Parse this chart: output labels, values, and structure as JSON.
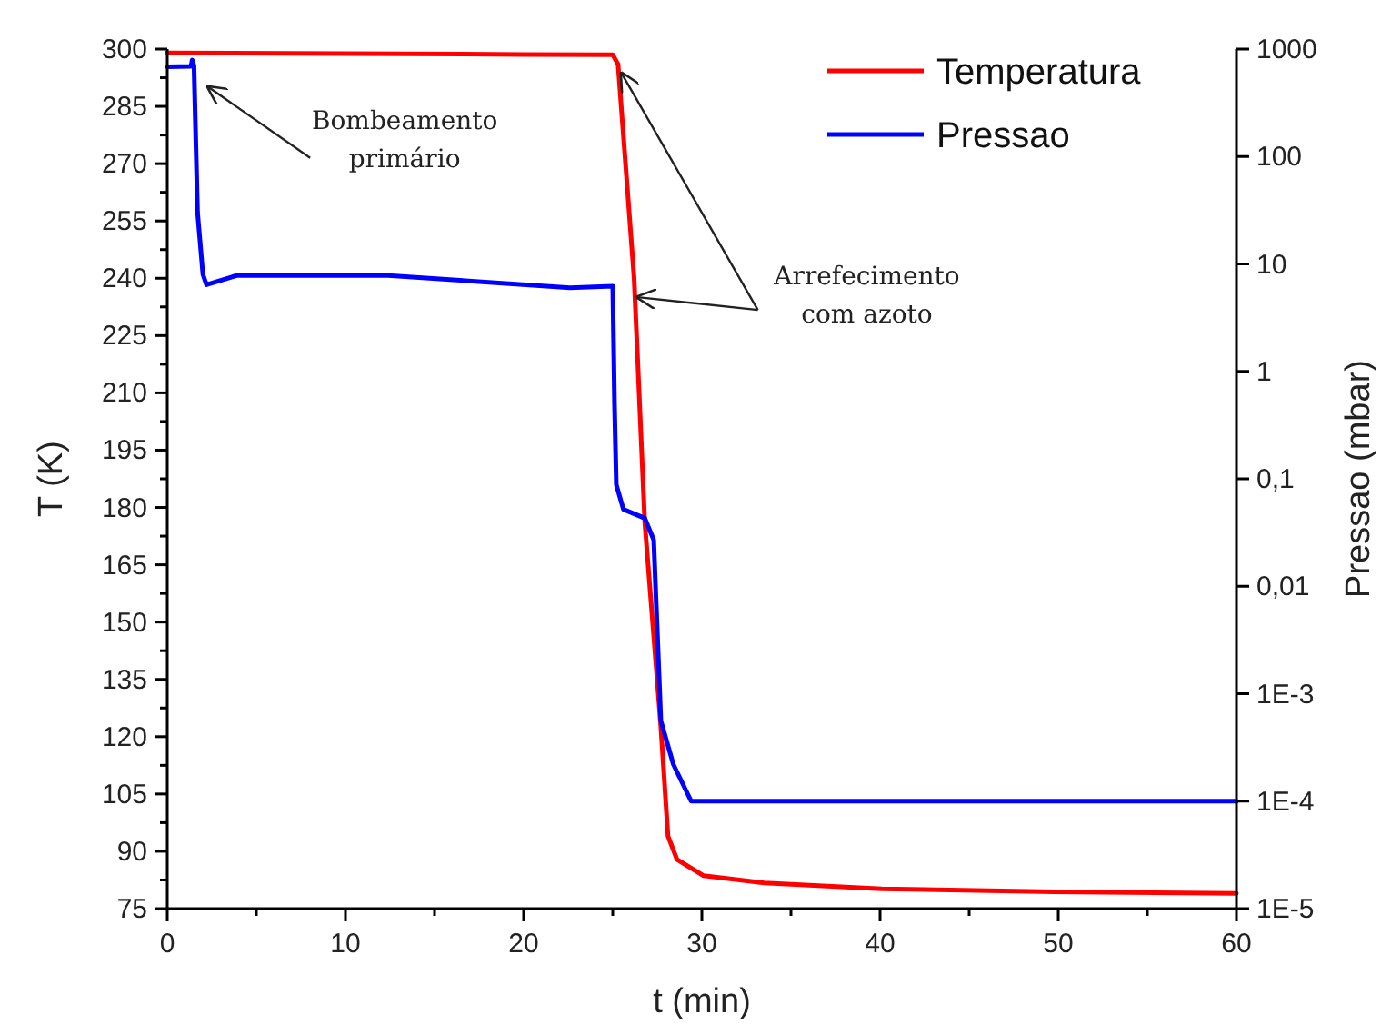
{
  "chart_data": {
    "type": "line",
    "xlabel": "t (min)",
    "ylabel": "T (K)",
    "y2label": "Pressao (mbar)",
    "xlim": [
      0,
      60
    ],
    "xticks": [
      0,
      {
        "value": 5,
        "label": null
      },
      10,
      {
        "value": 15,
        "label": null
      },
      20,
      {
        "value": 25,
        "label": null
      },
      30,
      {
        "value": 35,
        "label": null
      },
      40,
      {
        "value": 45,
        "label": null
      },
      50,
      {
        "value": 55,
        "label": null
      },
      60
    ],
    "ylim": [
      75,
      300
    ],
    "yticks": [
      75,
      {
        "value": 82.5,
        "label": null
      },
      90,
      {
        "value": 97.5,
        "label": null
      },
      105,
      {
        "value": 112.5,
        "label": null
      },
      120,
      {
        "value": 127.5,
        "label": null
      },
      135,
      {
        "value": 142.5,
        "label": null
      },
      150,
      {
        "value": 157.5,
        "label": null
      },
      165,
      {
        "value": 172.5,
        "label": null
      },
      180,
      {
        "value": 187.5,
        "label": null
      },
      195,
      {
        "value": 202.5,
        "label": null
      },
      210,
      {
        "value": 217.5,
        "label": null
      },
      225,
      {
        "value": 232.5,
        "label": null
      },
      240,
      {
        "value": 247.5,
        "label": null
      },
      255,
      {
        "value": 262.5,
        "label": null
      },
      270,
      {
        "value": 277.5,
        "label": null
      },
      285,
      {
        "value": 292.5,
        "label": null
      },
      300
    ],
    "y2lim": [
      1e-05,
      1000
    ],
    "y2ticks": [
      {
        "value": 1e-05,
        "label": "1E-5"
      },
      {
        "value": 0.0001,
        "label": "1E-4"
      },
      {
        "value": 0.001,
        "label": "1E-3"
      },
      {
        "value": 0.01,
        "label": "0,01"
      },
      {
        "value": 0.1,
        "label": "0,1"
      },
      1,
      10,
      100,
      1000
    ],
    "log": "y2",
    "legend": "top right",
    "line_style": "solid",
    "annotations": [
      {
        "text": "Bombeamento\nprimário",
        "x": 2.1,
        "y": 291
      },
      {
        "text": "Arrefecimento\ncom azoto",
        "x": 26.2,
        "y": 236
      }
    ],
    "series": [
      {
        "name": "Temperatura",
        "color": "#ff0000",
        "x": [
          0,
          10,
          20,
          25,
          25.3,
          26.2,
          26.8,
          27.7,
          28.1,
          28.6,
          30.1,
          33.5,
          40.1,
          49.8,
          60
        ],
        "values": [
          299,
          298.8,
          298.6,
          298.5,
          296,
          240,
          176,
          122.6,
          94,
          87.9,
          83.6,
          81.7,
          80.2,
          79.4,
          79
        ]
      },
      {
        "name": "Pressao",
        "color": "#0000ff",
        "axis": "y2",
        "x": [
          0,
          1.33,
          1.4,
          1.5,
          1.7,
          2.0,
          2.2,
          3.9,
          12.4,
          22.6,
          25.0,
          25.1,
          25.2,
          25.6,
          26.8,
          27.3,
          27.7,
          28.4,
          29.4,
          60
        ],
        "values": [
          685,
          690,
          790,
          700,
          30,
          8,
          6.4,
          7.8,
          7.8,
          6.0,
          6.2,
          0.5,
          0.088,
          0.052,
          0.043,
          0.027,
          0.00056,
          0.00022,
          0.0001,
          0.0001
        ]
      }
    ]
  }
}
